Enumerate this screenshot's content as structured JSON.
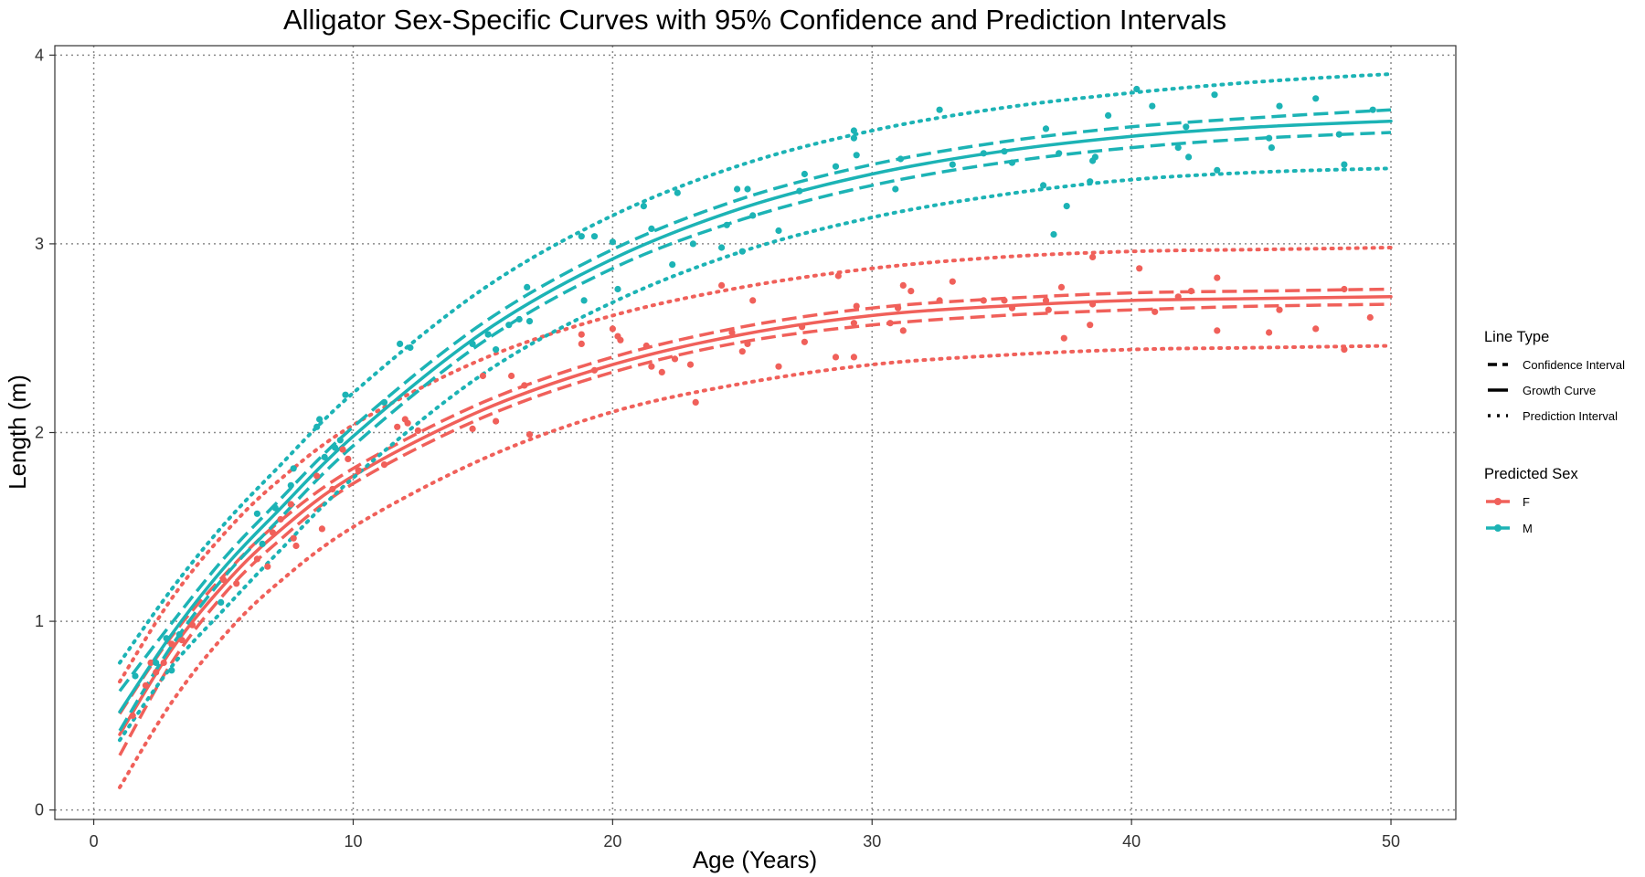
{
  "chart_data": {
    "type": "line",
    "title": "Alligator Sex-Specific Curves with 95% Confidence and Prediction Intervals",
    "xlabel": "Age (Years)",
    "ylabel": "Length (m)",
    "xlim": [
      -1.5,
      52.5
    ],
    "ylim": [
      -0.05,
      4.05
    ],
    "x_ticks": [
      0,
      10,
      20,
      30,
      40,
      50
    ],
    "y_ticks": [
      0,
      1,
      2,
      3,
      4
    ],
    "x_tick_labels": [
      "0",
      "10",
      "20",
      "30",
      "40",
      "50"
    ],
    "y_tick_labels": [
      "0",
      "1",
      "2",
      "3",
      "4"
    ],
    "grid": true,
    "legend_position": "right",
    "legends": [
      {
        "title": "Line Type",
        "entries": [
          {
            "label": "Confidence Interval",
            "style": "dashed"
          },
          {
            "label": "Growth Curve",
            "style": "solid"
          },
          {
            "label": "Prediction Interval",
            "style": "dotted"
          }
        ]
      },
      {
        "title": "Predicted Sex",
        "entries": [
          {
            "label": "F",
            "color": "#F0605A"
          },
          {
            "label": "M",
            "color": "#1CB3B5"
          }
        ]
      }
    ],
    "series": [
      {
        "name": "F",
        "color": "#F0605A",
        "curves": {
          "x": [
            1,
            3,
            5,
            7,
            10,
            15,
            20,
            25,
            30,
            35,
            40,
            45,
            50
          ],
          "growth": [
            0.4,
            0.85,
            1.19,
            1.46,
            1.77,
            2.12,
            2.36,
            2.52,
            2.62,
            2.67,
            2.7,
            2.71,
            2.72
          ],
          "ci_lower": [
            0.29,
            0.78,
            1.14,
            1.41,
            1.73,
            2.08,
            2.32,
            2.48,
            2.57,
            2.62,
            2.65,
            2.67,
            2.68
          ],
          "ci_upper": [
            0.51,
            0.92,
            1.24,
            1.51,
            1.81,
            2.16,
            2.4,
            2.56,
            2.66,
            2.71,
            2.74,
            2.75,
            2.76
          ],
          "pi_lower": [
            0.12,
            0.57,
            0.92,
            1.19,
            1.5,
            1.86,
            2.11,
            2.26,
            2.36,
            2.41,
            2.44,
            2.45,
            2.46
          ],
          "pi_upper": [
            0.68,
            1.12,
            1.46,
            1.73,
            2.04,
            2.39,
            2.62,
            2.77,
            2.87,
            2.93,
            2.96,
            2.97,
            2.98
          ]
        },
        "points": [
          [
            1.5,
            0.5
          ],
          [
            2.0,
            0.66
          ],
          [
            2.2,
            0.78
          ],
          [
            2.4,
            0.73
          ],
          [
            2.7,
            0.78
          ],
          [
            3.0,
            0.88
          ],
          [
            3.4,
            0.9
          ],
          [
            3.8,
            0.98
          ],
          [
            5.0,
            1.22
          ],
          [
            5.5,
            1.2
          ],
          [
            6.3,
            1.33
          ],
          [
            6.7,
            1.29
          ],
          [
            6.9,
            1.47
          ],
          [
            7.2,
            1.54
          ],
          [
            7.6,
            1.62
          ],
          [
            7.7,
            1.44
          ],
          [
            7.8,
            1.4
          ],
          [
            8.6,
            1.77
          ],
          [
            8.8,
            1.49
          ],
          [
            9.2,
            1.7
          ],
          [
            9.6,
            1.91
          ],
          [
            9.8,
            1.86
          ],
          [
            10.2,
            1.8
          ],
          [
            11.2,
            1.83
          ],
          [
            11.7,
            2.03
          ],
          [
            12.0,
            2.07
          ],
          [
            12.1,
            2.05
          ],
          [
            12.5,
            2.01
          ],
          [
            14.6,
            2.02
          ],
          [
            15.0,
            2.3
          ],
          [
            15.5,
            2.06
          ],
          [
            16.1,
            2.3
          ],
          [
            16.6,
            2.25
          ],
          [
            16.8,
            1.99
          ],
          [
            18.8,
            2.52
          ],
          [
            18.8,
            2.47
          ],
          [
            19.3,
            2.33
          ],
          [
            20.0,
            2.55
          ],
          [
            20.2,
            2.51
          ],
          [
            20.3,
            2.49
          ],
          [
            21.3,
            2.46
          ],
          [
            21.5,
            2.35
          ],
          [
            21.9,
            2.32
          ],
          [
            22.4,
            2.39
          ],
          [
            23.0,
            2.36
          ],
          [
            23.2,
            2.16
          ],
          [
            24.2,
            2.78
          ],
          [
            24.6,
            2.53
          ],
          [
            25.0,
            2.43
          ],
          [
            25.2,
            2.47
          ],
          [
            25.4,
            2.7
          ],
          [
            26.4,
            2.35
          ],
          [
            27.3,
            2.56
          ],
          [
            27.4,
            2.48
          ],
          [
            28.6,
            2.4
          ],
          [
            28.7,
            2.83
          ],
          [
            29.3,
            2.4
          ],
          [
            29.3,
            2.58
          ],
          [
            29.4,
            2.67
          ],
          [
            30.7,
            2.58
          ],
          [
            31.0,
            2.66
          ],
          [
            31.2,
            2.54
          ],
          [
            31.2,
            2.78
          ],
          [
            31.5,
            2.75
          ],
          [
            32.6,
            2.7
          ],
          [
            33.1,
            2.8
          ],
          [
            34.3,
            2.7
          ],
          [
            35.1,
            2.7
          ],
          [
            35.4,
            2.66
          ],
          [
            36.7,
            2.7
          ],
          [
            36.8,
            2.65
          ],
          [
            37.3,
            2.77
          ],
          [
            37.4,
            2.5
          ],
          [
            38.4,
            2.57
          ],
          [
            38.5,
            2.68
          ],
          [
            38.5,
            2.93
          ],
          [
            40.3,
            2.87
          ],
          [
            40.9,
            2.64
          ],
          [
            41.8,
            2.72
          ],
          [
            42.3,
            2.75
          ],
          [
            43.3,
            2.54
          ],
          [
            43.3,
            2.82
          ],
          [
            45.3,
            2.53
          ],
          [
            45.7,
            2.65
          ],
          [
            47.1,
            2.55
          ],
          [
            48.2,
            2.44
          ],
          [
            48.2,
            2.76
          ],
          [
            49.2,
            2.61
          ]
        ]
      },
      {
        "name": "M",
        "color": "#1CB3B5",
        "curves": {
          "x": [
            1,
            3,
            5,
            7,
            10,
            15,
            20,
            25,
            30,
            35,
            40,
            45,
            50
          ],
          "growth": [
            0.52,
            0.93,
            1.28,
            1.57,
            1.98,
            2.53,
            2.92,
            3.19,
            3.37,
            3.49,
            3.57,
            3.62,
            3.65
          ],
          "ci_lower": [
            0.42,
            0.87,
            1.23,
            1.52,
            1.93,
            2.48,
            2.87,
            3.13,
            3.31,
            3.43,
            3.51,
            3.56,
            3.59
          ],
          "ci_upper": [
            0.63,
            0.99,
            1.33,
            1.62,
            2.03,
            2.58,
            2.97,
            3.24,
            3.42,
            3.54,
            3.62,
            3.67,
            3.71
          ],
          "pi_lower": [
            0.37,
            0.76,
            1.06,
            1.35,
            1.76,
            2.31,
            2.69,
            2.96,
            3.14,
            3.26,
            3.34,
            3.38,
            3.4
          ],
          "pi_upper": [
            0.78,
            1.17,
            1.51,
            1.8,
            2.21,
            2.76,
            3.15,
            3.42,
            3.6,
            3.72,
            3.8,
            3.86,
            3.9
          ]
        },
        "points": [
          [
            1.6,
            0.71
          ],
          [
            2.4,
            0.78
          ],
          [
            2.8,
            0.91
          ],
          [
            3.0,
            0.74
          ],
          [
            3.3,
            0.93
          ],
          [
            4.9,
            1.1
          ],
          [
            6.3,
            1.57
          ],
          [
            6.5,
            1.41
          ],
          [
            7.0,
            1.6
          ],
          [
            7.6,
            1.72
          ],
          [
            7.7,
            1.81
          ],
          [
            8.6,
            2.03
          ],
          [
            8.7,
            2.07
          ],
          [
            8.9,
            1.87
          ],
          [
            9.3,
            1.92
          ],
          [
            9.5,
            1.96
          ],
          [
            9.7,
            2.2
          ],
          [
            11.2,
            2.16
          ],
          [
            11.8,
            2.47
          ],
          [
            12.2,
            2.45
          ],
          [
            14.6,
            2.47
          ],
          [
            15.2,
            2.52
          ],
          [
            15.5,
            2.44
          ],
          [
            16.0,
            2.57
          ],
          [
            16.4,
            2.6
          ],
          [
            16.7,
            2.77
          ],
          [
            16.8,
            2.59
          ],
          [
            18.8,
            3.04
          ],
          [
            18.9,
            2.7
          ],
          [
            19.3,
            3.04
          ],
          [
            20.0,
            3.01
          ],
          [
            20.2,
            2.76
          ],
          [
            21.2,
            3.2
          ],
          [
            21.5,
            3.08
          ],
          [
            22.3,
            2.89
          ],
          [
            22.5,
            3.27
          ],
          [
            23.1,
            3.0
          ],
          [
            24.2,
            2.98
          ],
          [
            24.4,
            3.1
          ],
          [
            24.8,
            3.29
          ],
          [
            25.0,
            2.96
          ],
          [
            25.2,
            3.29
          ],
          [
            25.4,
            3.15
          ],
          [
            26.4,
            3.07
          ],
          [
            27.2,
            3.28
          ],
          [
            27.4,
            3.37
          ],
          [
            28.6,
            3.41
          ],
          [
            29.3,
            3.6
          ],
          [
            29.3,
            3.56
          ],
          [
            29.4,
            3.47
          ],
          [
            30.9,
            3.29
          ],
          [
            31.1,
            3.45
          ],
          [
            32.6,
            3.71
          ],
          [
            33.1,
            3.42
          ],
          [
            34.3,
            3.48
          ],
          [
            35.1,
            3.49
          ],
          [
            35.4,
            3.43
          ],
          [
            36.6,
            3.31
          ],
          [
            36.7,
            3.61
          ],
          [
            37.0,
            3.05
          ],
          [
            37.2,
            3.48
          ],
          [
            37.5,
            3.2
          ],
          [
            38.4,
            3.33
          ],
          [
            38.5,
            3.44
          ],
          [
            38.6,
            3.46
          ],
          [
            39.1,
            3.68
          ],
          [
            40.2,
            3.82
          ],
          [
            40.8,
            3.73
          ],
          [
            41.8,
            3.51
          ],
          [
            42.1,
            3.62
          ],
          [
            42.2,
            3.46
          ],
          [
            43.2,
            3.79
          ],
          [
            43.3,
            3.39
          ],
          [
            45.3,
            3.56
          ],
          [
            45.4,
            3.51
          ],
          [
            45.7,
            3.73
          ],
          [
            47.1,
            3.77
          ],
          [
            48.0,
            3.58
          ],
          [
            48.2,
            3.42
          ],
          [
            49.3,
            3.71
          ]
        ]
      }
    ]
  }
}
